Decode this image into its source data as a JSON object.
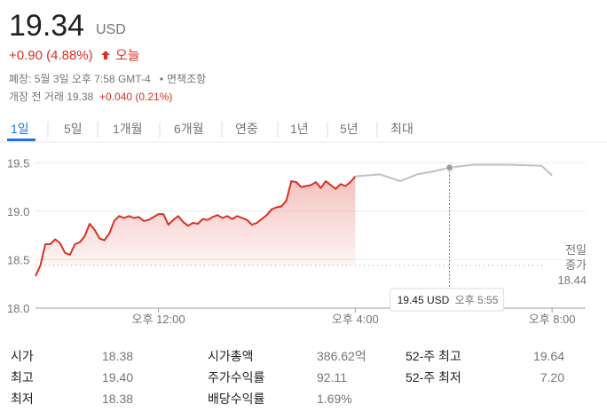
{
  "header": {
    "price": "19.34",
    "currency": "USD",
    "change": "+0.90 (4.88%)",
    "period": "오늘",
    "close_info": "폐장: 5월 3일 오후 7:58 GMT-4",
    "disclaimer": "면책조항",
    "premarket": "개장 전 거래 19.38",
    "premarket_change": "+0.040 (0.21%)"
  },
  "tabs": [
    "1일",
    "5일",
    "1개월",
    "6개월",
    "연중",
    "1년",
    "5년",
    "최대"
  ],
  "chart_data": {
    "type": "line",
    "series": [
      {
        "color": "#d93025",
        "fill": true,
        "x": [
          570,
          576,
          582,
          588,
          594,
          600,
          606,
          612,
          618,
          624,
          630,
          636,
          642,
          648,
          654,
          660,
          666,
          672,
          678,
          684,
          690,
          696,
          702,
          708,
          714,
          720,
          726,
          732,
          738,
          744,
          750,
          756,
          762,
          768,
          774,
          780,
          786,
          792,
          798,
          804,
          810,
          816,
          822,
          828,
          834,
          840,
          846,
          852,
          858,
          864,
          870,
          876,
          882,
          888,
          894,
          900,
          906,
          912,
          918,
          924,
          930,
          936,
          942,
          948,
          954,
          960
        ],
        "values": [
          18.33,
          18.44,
          18.66,
          18.66,
          18.71,
          18.67,
          18.57,
          18.55,
          18.66,
          18.68,
          18.74,
          18.87,
          18.81,
          18.72,
          18.7,
          18.77,
          18.9,
          18.95,
          18.93,
          18.95,
          18.93,
          18.94,
          18.9,
          18.91,
          18.94,
          18.97,
          18.97,
          18.86,
          18.91,
          18.95,
          18.89,
          18.85,
          18.88,
          18.87,
          18.92,
          18.91,
          18.94,
          18.96,
          18.93,
          18.95,
          18.92,
          18.95,
          18.93,
          18.91,
          18.86,
          18.88,
          18.92,
          18.96,
          19.02,
          19.04,
          19.05,
          19.11,
          19.31,
          19.3,
          19.25,
          19.26,
          19.27,
          19.3,
          19.24,
          19.31,
          19.27,
          19.23,
          19.28,
          19.26,
          19.3,
          19.36
        ]
      },
      {
        "color": "#bdc1c6",
        "fill": false,
        "x": [
          960,
          990,
          1015,
          1035,
          1055,
          1075,
          1105,
          1145,
          1187,
          1200
        ],
        "values": [
          19.36,
          19.38,
          19.31,
          19.38,
          19.41,
          19.45,
          19.48,
          19.48,
          19.47,
          19.37
        ]
      }
    ],
    "xlim": [
      570,
      1241
    ],
    "xticks": [
      {
        "value": 720,
        "label": "오후 12:00"
      },
      {
        "value": 960,
        "label": "오후 4:00"
      },
      {
        "value": 1200,
        "label": "오후 8:00"
      }
    ],
    "ylim": [
      18.0,
      19.64
    ],
    "yticks": [
      {
        "value": 18.0,
        "label": "18.0"
      },
      18.5,
      {
        "value": 19.0,
        "label": "19.0"
      },
      19.5
    ],
    "grid": true,
    "reference_label": [
      "전일",
      "종가"
    ],
    "reference_value": 18.44,
    "tooltip": {
      "x": 1075,
      "time_label": "오후 5:55",
      "value": 19.45,
      "value_label": "19.45 USD"
    }
  },
  "stats": [
    [
      [
        "시가",
        "18.38"
      ],
      [
        "최고",
        "19.40"
      ],
      [
        "최저",
        "18.38"
      ]
    ],
    [
      [
        "시가총액",
        "386.62억"
      ],
      [
        "주가수익률",
        "92.11"
      ],
      [
        "배당수익률",
        "1.69%"
      ]
    ],
    [
      [
        "52-주 최고",
        "19.64"
      ],
      [
        "52-주 최저",
        "7.20"
      ]
    ]
  ]
}
